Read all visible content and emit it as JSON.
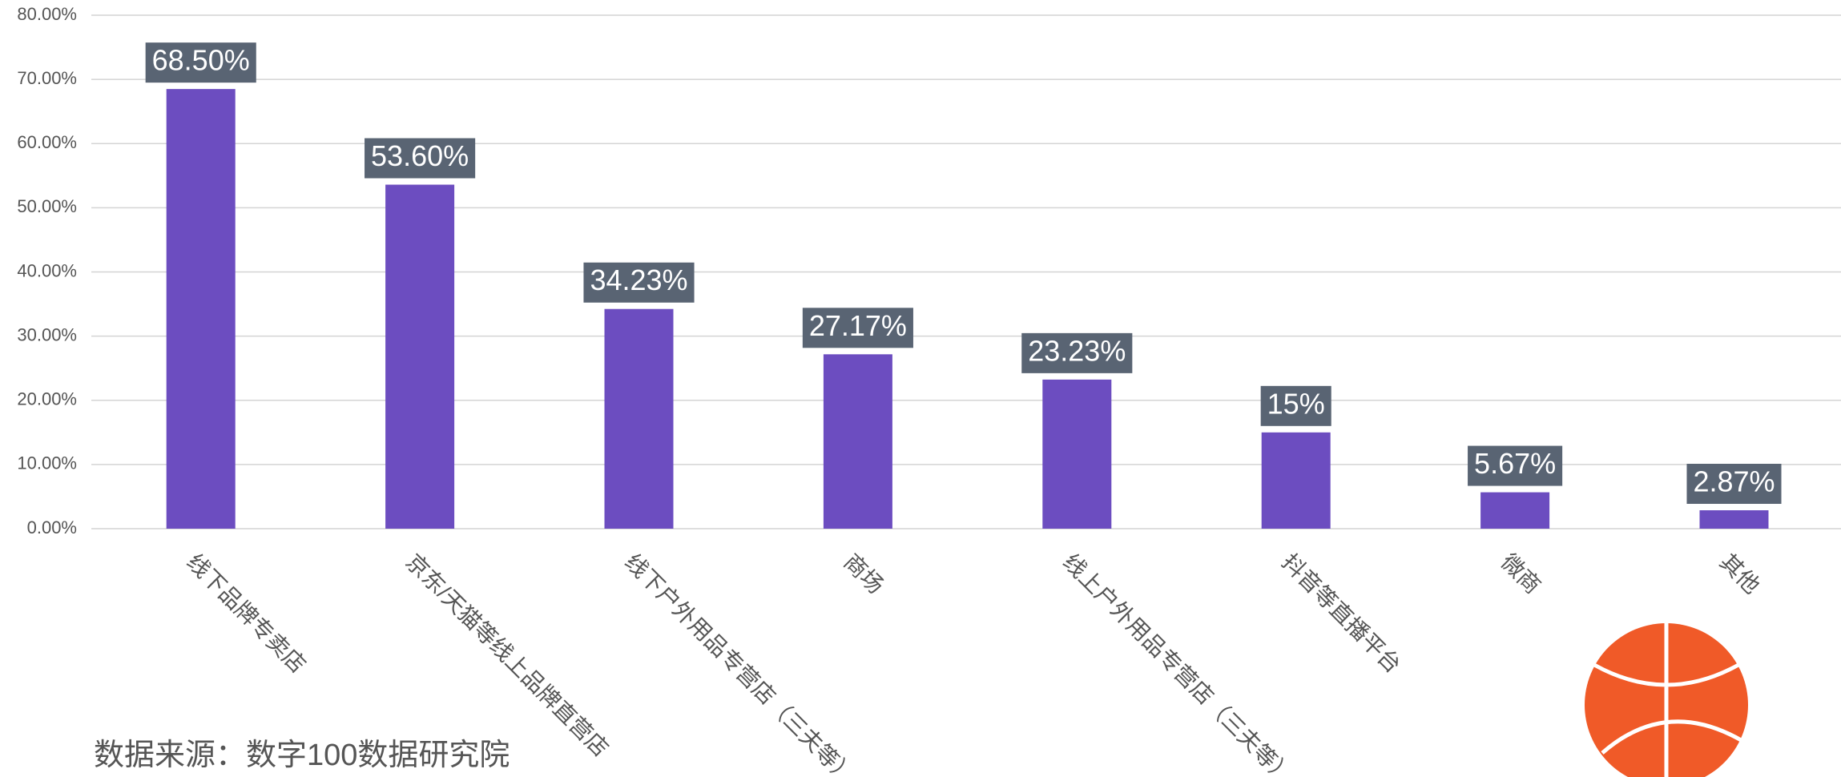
{
  "chart_data": {
    "type": "bar",
    "categories": [
      "线下品牌专卖店",
      "京东/天猫等线上品牌直营店",
      "线下户外用品专营店（三夫等）",
      "商场",
      "线上户外用品专营店（三夫等）",
      "抖音等直播平台",
      "微商",
      "其他"
    ],
    "values": [
      68.5,
      53.6,
      34.23,
      27.17,
      23.23,
      15,
      5.67,
      2.87
    ],
    "value_labels": [
      "68.50%",
      "53.60%",
      "34.23%",
      "27.17%",
      "23.23%",
      "15%",
      "5.67%",
      "2.87%"
    ],
    "color": "#6c4dc0",
    "ylim": [
      0,
      80
    ],
    "yticks": [
      {
        "value": 0,
        "label": "0.00%"
      },
      {
        "value": 10,
        "label": "10.00%"
      },
      {
        "value": 20,
        "label": "20.00%"
      },
      {
        "value": 30,
        "label": "30.00%"
      },
      {
        "value": 40,
        "label": "40.00%"
      },
      {
        "value": 50,
        "label": "50.00%"
      },
      {
        "value": 60,
        "label": "60.00%"
      },
      {
        "value": 70,
        "label": "70.00%"
      },
      {
        "value": 80,
        "label": "80.00%"
      }
    ],
    "grid": true,
    "source": "数据来源：数字100数据研究院"
  }
}
